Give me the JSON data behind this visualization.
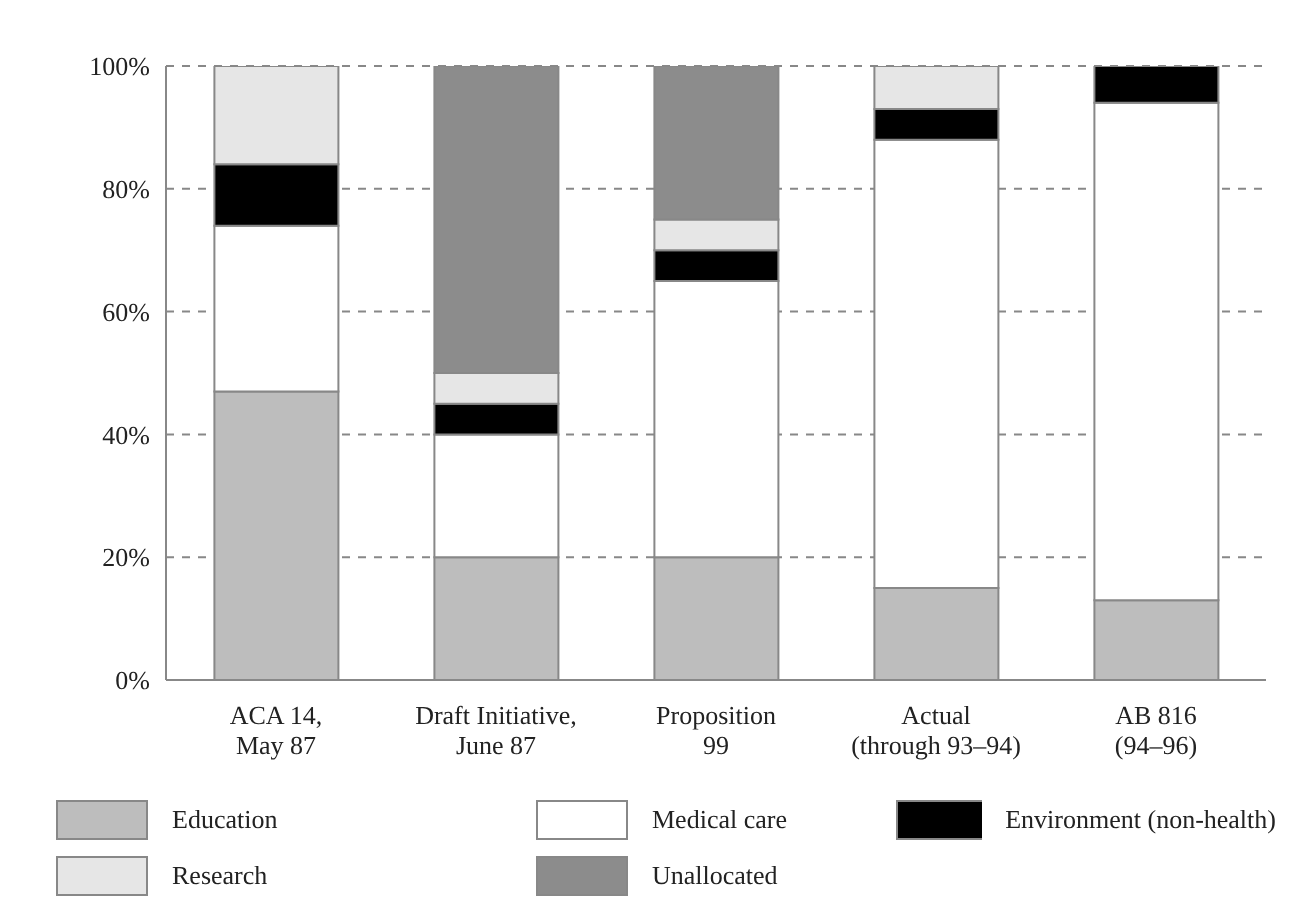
{
  "chart_data": {
    "type": "bar",
    "stacked": true,
    "categories": [
      "ACA 14,\nMay 87",
      "Draft Initiative,\nJune 87",
      "Proposition\n99",
      "Actual\n(through 93–94)",
      "AB 816\n(94–96)"
    ],
    "series": [
      {
        "name": "Education",
        "color": "#bdbdbd",
        "values": [
          47,
          20,
          20,
          15,
          13
        ]
      },
      {
        "name": "Medical care",
        "color": "#ffffff",
        "values": [
          27,
          20,
          45,
          73,
          81
        ]
      },
      {
        "name": "Environment (non-health)",
        "color": "#000000",
        "values": [
          10,
          5,
          5,
          5,
          6
        ]
      },
      {
        "name": "Research",
        "color": "#e6e6e6",
        "values": [
          16,
          5,
          5,
          7,
          null
        ]
      },
      {
        "name": "Unallocated",
        "color": "#8c8c8c",
        "values": [
          null,
          50,
          25,
          null,
          null
        ]
      }
    ],
    "ylim": [
      0,
      100
    ],
    "yticks": [
      {
        "value": 0,
        "label": "0%"
      },
      {
        "value": 20,
        "label": "20%"
      },
      {
        "value": 40,
        "label": "40%"
      },
      {
        "value": 60,
        "label": "60%"
      },
      {
        "value": 80,
        "label": "80%"
      },
      {
        "value": 100,
        "label": "100%"
      }
    ],
    "grid": "y",
    "legend": "bottom"
  }
}
